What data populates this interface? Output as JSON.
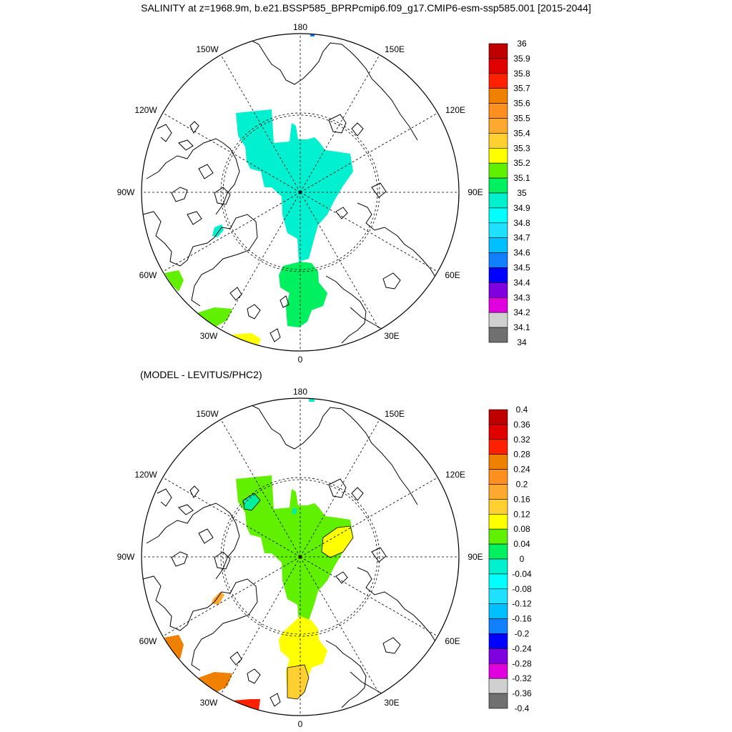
{
  "title": "SALINITY at z=1968.9m, b.e21.BSSP585_BPRPcmip6.f09_g17.CMIP6-esm-ssp585.001 [2015-2044]",
  "subtitle": "(MODEL - LEVITUS/PHC2)",
  "lon_labels": {
    "top": "180",
    "bottom": "0",
    "lon150w": "150W",
    "lon150e": "150E",
    "lon120w": "120W",
    "lon120e": "120E",
    "lon90w": "90W",
    "lon90e": "90E",
    "lon60w": "60W",
    "lon60e": "60E",
    "lon30w": "30W",
    "lon30e": "30E"
  },
  "colorbar_top": {
    "labels": [
      "36",
      "35.9",
      "35.8",
      "35.7",
      "35.6",
      "35.5",
      "35.4",
      "35.3",
      "35.2",
      "35.1",
      "35",
      "34.9",
      "34.8",
      "34.7",
      "34.6",
      "34.5",
      "34.4",
      "34.3",
      "34.2",
      "34.1",
      "34"
    ],
    "colors": [
      "#c00000",
      "#e00000",
      "#ff2000",
      "#f08000",
      "#ff9020",
      "#ffa830",
      "#ffd030",
      "#ffff00",
      "#60f000",
      "#00f060",
      "#00f0d0",
      "#00ffff",
      "#20e0ff",
      "#00c0ff",
      "#1080ff",
      "#0000ff",
      "#8000e0",
      "#e000e0",
      "#d0d0d0",
      "#707070"
    ]
  },
  "colorbar_bottom": {
    "labels": [
      "0.4",
      "0.36",
      "0.32",
      "0.28",
      "0.24",
      "0.2",
      "0.16",
      "0.12",
      "0.08",
      "0.04",
      "0",
      "-0.04",
      "-0.08",
      "-0.12",
      "-0.16",
      "-0.2",
      "-0.24",
      "-0.28",
      "-0.32",
      "-0.36",
      "-0.4"
    ],
    "colors": [
      "#c00000",
      "#e00000",
      "#ff2000",
      "#f08000",
      "#ff9020",
      "#ffa830",
      "#ffd030",
      "#ffff00",
      "#60f000",
      "#00f060",
      "#00f0d0",
      "#00ffff",
      "#20e0ff",
      "#00c0ff",
      "#1080ff",
      "#0000ff",
      "#8000e0",
      "#e000e0",
      "#d0d0d0",
      "#707070"
    ]
  }
}
